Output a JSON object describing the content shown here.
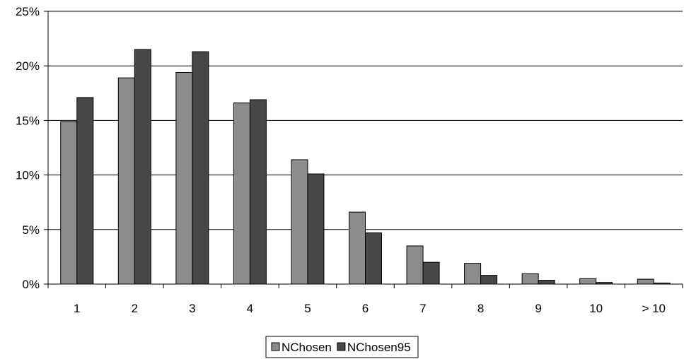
{
  "chart_data": {
    "type": "bar",
    "title": "",
    "xlabel": "",
    "ylabel": "",
    "categories": [
      "1",
      "2",
      "3",
      "4",
      "5",
      "6",
      "7",
      "8",
      "9",
      "10",
      "> 10"
    ],
    "series": [
      {
        "name": "NChosen",
        "color": "#8c8c8c",
        "values": [
          14.9,
          18.9,
          19.4,
          16.6,
          11.4,
          6.6,
          3.5,
          1.9,
          0.95,
          0.5,
          0.45
        ]
      },
      {
        "name": "NChosen95",
        "color": "#474747",
        "values": [
          17.1,
          21.5,
          21.3,
          16.9,
          10.1,
          4.7,
          2.0,
          0.8,
          0.35,
          0.15,
          0.1
        ]
      }
    ],
    "ylim": [
      0,
      25
    ],
    "yticks": [
      "0%",
      "5%",
      "10%",
      "15%",
      "20%",
      "25%"
    ],
    "ytick_values": [
      0,
      5,
      10,
      15,
      20,
      25
    ],
    "grid": true,
    "legend_position": "bottom-center"
  }
}
